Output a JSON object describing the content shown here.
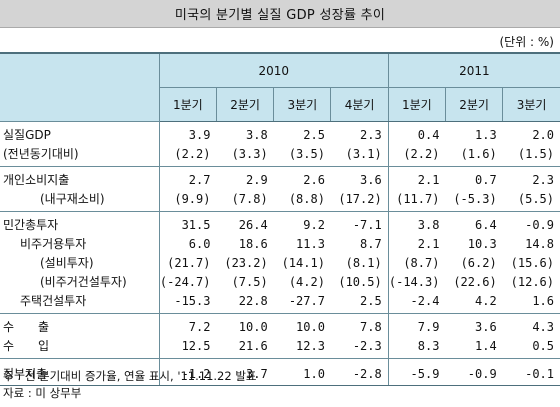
{
  "title": "미국의 분기별 실질 GDP 성장률 추이",
  "unit": "(단위 : %)",
  "years": [
    {
      "label": "2010",
      "span": 4
    },
    {
      "label": "2011",
      "span": 3
    }
  ],
  "quarters": [
    "1분기",
    "2분기",
    "3분기",
    "4분기",
    "1분기",
    "2분기",
    "3분기"
  ],
  "rows": [
    {
      "label": "실질GDP",
      "indent": 0,
      "values": [
        "3.9",
        "3.8",
        "2.5",
        "2.3",
        "0.4",
        "1.3",
        "2.0"
      ],
      "group": "start"
    },
    {
      "label": "(전년동기대비)",
      "indent": 0,
      "values": [
        "(2.2)",
        "(3.3)",
        "(3.5)",
        "(3.1)",
        "(2.2)",
        "(1.6)",
        "(1.5)"
      ],
      "group": "end"
    },
    {
      "label": "개인소비지출",
      "indent": 0,
      "values": [
        "2.7",
        "2.9",
        "2.6",
        "3.6",
        "2.1",
        "0.7",
        "2.3"
      ],
      "group": "start"
    },
    {
      "label": "(내구재소비)",
      "indent": 2,
      "values": [
        "(9.9)",
        "(7.8)",
        "(8.8)",
        "(17.2)",
        "(11.7)",
        "(-5.3)",
        "(5.5)"
      ],
      "group": "end"
    },
    {
      "label": "민간총투자",
      "indent": 0,
      "values": [
        "31.5",
        "26.4",
        "9.2",
        "-7.1",
        "3.8",
        "6.4",
        "-0.9"
      ],
      "group": "start"
    },
    {
      "label": "비주거용투자",
      "indent": 1,
      "values": [
        "6.0",
        "18.6",
        "11.3",
        "8.7",
        "2.1",
        "10.3",
        "14.8"
      ],
      "group": "mid"
    },
    {
      "label": "(설비투자)",
      "indent": 2,
      "values": [
        "(21.7)",
        "(23.2)",
        "(14.1)",
        "(8.1)",
        "(8.7)",
        "(6.2)",
        "(15.6)"
      ],
      "group": "mid"
    },
    {
      "label": "(비주거건설투자)",
      "indent": 2,
      "values": [
        "(-24.7)",
        "(7.5)",
        "(4.2)",
        "(10.5)",
        "(-14.3)",
        "(22.6)",
        "(12.6)"
      ],
      "group": "mid"
    },
    {
      "label": "주택건설투자",
      "indent": 1,
      "values": [
        "-15.3",
        "22.8",
        "-27.7",
        "2.5",
        "-2.4",
        "4.2",
        "1.6"
      ],
      "group": "end"
    },
    {
      "label": "수　　출",
      "indent": 0,
      "values": [
        "7.2",
        "10.0",
        "10.0",
        "7.8",
        "7.9",
        "3.6",
        "4.3"
      ],
      "group": "start"
    },
    {
      "label": "수　　입",
      "indent": 0,
      "values": [
        "12.5",
        "21.6",
        "12.3",
        "-2.3",
        "8.3",
        "1.4",
        "0.5"
      ],
      "group": "end"
    },
    {
      "label": "정부지출",
      "indent": 0,
      "values": [
        "-1.2",
        "3.7",
        "1.0",
        "-2.8",
        "-5.9",
        "-0.9",
        "-0.1"
      ],
      "group": "last"
    }
  ],
  "notes": [
    "주 : 전 분기대비 증가율, 연율 표시, '11.11.22 발표",
    "자료 : 미 상무부"
  ]
}
